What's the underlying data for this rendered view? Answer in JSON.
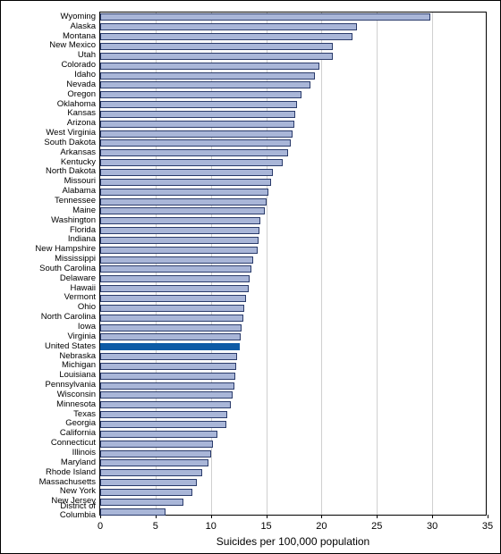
{
  "chart": {
    "type": "horizontal-bar",
    "xlabel": "Suicides per 100,000 population",
    "xlim": [
      0,
      35
    ],
    "xtick_step": 5,
    "xticks": [
      0,
      5,
      10,
      15,
      20,
      25,
      30,
      35
    ],
    "background_color": "#ffffff",
    "grid_color": "#d0d0d0",
    "bar_color": "#a9b6d8",
    "bar_border_color": "#2a3b6b",
    "highlight_color": "#0e5ba6",
    "label_fontsize": 9.5,
    "axis_fontsize": 11,
    "title_fontsize": 12,
    "items": [
      {
        "label": "Wyoming",
        "value": 29.8,
        "highlight": false
      },
      {
        "label": "Alaska",
        "value": 23.2,
        "highlight": false
      },
      {
        "label": "Montana",
        "value": 22.8,
        "highlight": false
      },
      {
        "label": "New Mexico",
        "value": 21.0,
        "highlight": false
      },
      {
        "label": "Utah",
        "value": 21.0,
        "highlight": false
      },
      {
        "label": "Colorado",
        "value": 19.8,
        "highlight": false
      },
      {
        "label": "Idaho",
        "value": 19.4,
        "highlight": false
      },
      {
        "label": "Nevada",
        "value": 19.0,
        "highlight": false
      },
      {
        "label": "Oregon",
        "value": 18.2,
        "highlight": false
      },
      {
        "label": "Oklahoma",
        "value": 17.8,
        "highlight": false
      },
      {
        "label": "Kansas",
        "value": 17.6,
        "highlight": false
      },
      {
        "label": "Arizona",
        "value": 17.5,
        "highlight": false
      },
      {
        "label": "West Virginia",
        "value": 17.4,
        "highlight": false
      },
      {
        "label": "South Dakota",
        "value": 17.2,
        "highlight": false
      },
      {
        "label": "Arkansas",
        "value": 17.0,
        "highlight": false
      },
      {
        "label": "Kentucky",
        "value": 16.5,
        "highlight": false
      },
      {
        "label": "North Dakota",
        "value": 15.6,
        "highlight": false
      },
      {
        "label": "Missouri",
        "value": 15.4,
        "highlight": false
      },
      {
        "label": "Alabama",
        "value": 15.2,
        "highlight": false
      },
      {
        "label": "Tennessee",
        "value": 15.0,
        "highlight": false
      },
      {
        "label": "Maine",
        "value": 14.9,
        "highlight": false
      },
      {
        "label": "Washington",
        "value": 14.5,
        "highlight": false
      },
      {
        "label": "Florida",
        "value": 14.4,
        "highlight": false
      },
      {
        "label": "Indiana",
        "value": 14.3,
        "highlight": false
      },
      {
        "label": "New Hampshire",
        "value": 14.2,
        "highlight": false
      },
      {
        "label": "Mississippi",
        "value": 13.8,
        "highlight": false
      },
      {
        "label": "South Carolina",
        "value": 13.7,
        "highlight": false
      },
      {
        "label": "Delaware",
        "value": 13.5,
        "highlight": false
      },
      {
        "label": "Hawaii",
        "value": 13.4,
        "highlight": false
      },
      {
        "label": "Vermont",
        "value": 13.2,
        "highlight": false
      },
      {
        "label": "Ohio",
        "value": 13.0,
        "highlight": false
      },
      {
        "label": "North Carolina",
        "value": 12.9,
        "highlight": false
      },
      {
        "label": "Iowa",
        "value": 12.8,
        "highlight": false
      },
      {
        "label": "Virginia",
        "value": 12.7,
        "highlight": false
      },
      {
        "label": "United States",
        "value": 12.6,
        "highlight": true
      },
      {
        "label": "Nebraska",
        "value": 12.4,
        "highlight": false
      },
      {
        "label": "Michigan",
        "value": 12.3,
        "highlight": false
      },
      {
        "label": "Louisiana",
        "value": 12.2,
        "highlight": false
      },
      {
        "label": "Pennsylvania",
        "value": 12.1,
        "highlight": false
      },
      {
        "label": "Wisconsin",
        "value": 12.0,
        "highlight": false
      },
      {
        "label": "Minnesota",
        "value": 11.8,
        "highlight": false
      },
      {
        "label": "Texas",
        "value": 11.5,
        "highlight": false
      },
      {
        "label": "Georgia",
        "value": 11.4,
        "highlight": false
      },
      {
        "label": "California",
        "value": 10.6,
        "highlight": false
      },
      {
        "label": "Connecticut",
        "value": 10.2,
        "highlight": false
      },
      {
        "label": "Illinois",
        "value": 10.0,
        "highlight": false
      },
      {
        "label": "Maryland",
        "value": 9.8,
        "highlight": false
      },
      {
        "label": "Rhode Island",
        "value": 9.2,
        "highlight": false
      },
      {
        "label": "Massachusetts",
        "value": 8.7,
        "highlight": false
      },
      {
        "label": "New York",
        "value": 8.3,
        "highlight": false
      },
      {
        "label": "New Jersey",
        "value": 7.5,
        "highlight": false
      },
      {
        "label": "District of\nColumbia",
        "value": 5.9,
        "highlight": false
      }
    ]
  }
}
